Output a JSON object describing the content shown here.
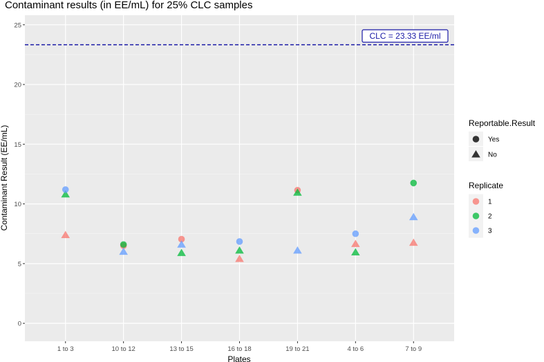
{
  "chart_data": {
    "type": "scatter",
    "title": "Contaminant results (in EE/mL) for 25% CLC samples",
    "xlabel": "Plates",
    "ylabel": "Contaminant Result (EE/mL)",
    "categories": [
      "1 to 3",
      "10 to 12",
      "13 to 15",
      "16 to 18",
      "19 to 21",
      "4 to 6",
      "7 to 9"
    ],
    "ylim": [
      -1.5,
      25.8
    ],
    "yticks": [
      0,
      5,
      10,
      15,
      20,
      25
    ],
    "grid": true,
    "reference_line": {
      "y": 23.33,
      "label": "CLC = 23.33 EE/ml",
      "color": "#1a1aa6",
      "style": "dashed"
    },
    "legends": [
      {
        "title": "Reportable.Result",
        "placement": "right",
        "items": [
          {
            "label": "Yes",
            "shape": "circle"
          },
          {
            "label": "No",
            "shape": "triangle"
          }
        ]
      },
      {
        "title": "Replicate",
        "placement": "right",
        "items": [
          {
            "label": "1",
            "color": "#F8766D"
          },
          {
            "label": "2",
            "color": "#00BA38"
          },
          {
            "label": "3",
            "color": "#619CFF"
          }
        ]
      }
    ],
    "series": [
      {
        "name": "1",
        "color": "#F8766D",
        "points": [
          {
            "x": "1 to 3",
            "y": 7.4,
            "reportable": "No"
          },
          {
            "x": "10 to 12",
            "y": 6.5,
            "reportable": "Yes"
          },
          {
            "x": "13 to 15",
            "y": 7.05,
            "reportable": "Yes"
          },
          {
            "x": "16 to 18",
            "y": 5.4,
            "reportable": "No"
          },
          {
            "x": "19 to 21",
            "y": 11.15,
            "reportable": "Yes"
          },
          {
            "x": "4 to 6",
            "y": 6.65,
            "reportable": "No"
          },
          {
            "x": "7 to 9",
            "y": 6.75,
            "reportable": "No"
          }
        ]
      },
      {
        "name": "2",
        "color": "#00BA38",
        "points": [
          {
            "x": "1 to 3",
            "y": 10.8,
            "reportable": "No"
          },
          {
            "x": "10 to 12",
            "y": 6.6,
            "reportable": "Yes"
          },
          {
            "x": "13 to 15",
            "y": 5.9,
            "reportable": "No"
          },
          {
            "x": "16 to 18",
            "y": 6.1,
            "reportable": "No"
          },
          {
            "x": "19 to 21",
            "y": 10.95,
            "reportable": "No"
          },
          {
            "x": "4 to 6",
            "y": 5.95,
            "reportable": "No"
          },
          {
            "x": "7 to 9",
            "y": 11.75,
            "reportable": "Yes"
          }
        ]
      },
      {
        "name": "3",
        "color": "#619CFF",
        "points": [
          {
            "x": "1 to 3",
            "y": 11.2,
            "reportable": "Yes"
          },
          {
            "x": "10 to 12",
            "y": 6.0,
            "reportable": "No"
          },
          {
            "x": "13 to 15",
            "y": 6.6,
            "reportable": "No"
          },
          {
            "x": "16 to 18",
            "y": 6.85,
            "reportable": "Yes"
          },
          {
            "x": "19 to 21",
            "y": 6.1,
            "reportable": "No"
          },
          {
            "x": "4 to 6",
            "y": 7.5,
            "reportable": "Yes"
          },
          {
            "x": "7 to 9",
            "y": 8.9,
            "reportable": "No"
          }
        ]
      }
    ]
  }
}
